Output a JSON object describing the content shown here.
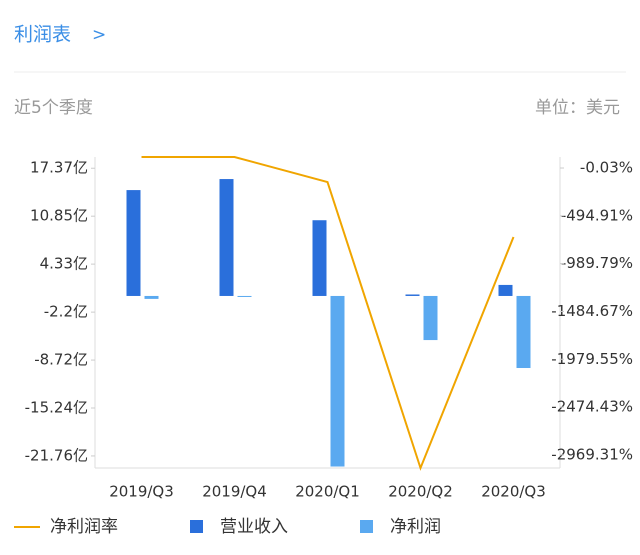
{
  "header": {
    "title": "利润表",
    "chevron": ">",
    "period": "近5个季度",
    "unit": "单位：美元"
  },
  "chart_data": {
    "type": "combo",
    "categories": [
      "2019/Q3",
      "2019/Q4",
      "2020/Q1",
      "2020/Q2",
      "2020/Q3"
    ],
    "series": [
      {
        "name": "净利润率",
        "color": "#f0a500",
        "type": "line",
        "axis": "y2",
        "values": [
          114,
          114,
          -145,
          -3105,
          -714
        ]
      },
      {
        "name": "营业收入",
        "color": "#2a6fdb",
        "type": "bar",
        "values": [
          14.4,
          15.9,
          10.3,
          0.2,
          1.5
        ]
      },
      {
        "name": "净利润",
        "color": "#5aa9f0",
        "type": "bar",
        "values": [
          -0.4,
          -0.1,
          -23.2,
          -6.0,
          -9.8
        ]
      }
    ],
    "ylim": [
      -23.4,
      18.9
    ],
    "yticks": [
      {
        "value": 17.37,
        "label": "17.37亿"
      },
      {
        "value": 10.85,
        "label": "10.85亿"
      },
      {
        "value": 4.33,
        "label": "4.33亿"
      },
      {
        "value": -2.2,
        "label": "-2.2亿"
      },
      {
        "value": -8.72,
        "label": "-8.72亿"
      },
      {
        "value": -15.24,
        "label": "-15.24亿"
      },
      {
        "value": -21.76,
        "label": "-21.76亿"
      }
    ],
    "y2lim": [
      -3105,
      114
    ],
    "y2ticks": [
      {
        "value": -0.03,
        "label": "-0.03%"
      },
      {
        "value": -494.91,
        "label": "-494.91%"
      },
      {
        "value": -989.79,
        "label": "-989.79%"
      },
      {
        "value": -1484.67,
        "label": "-1484.67%"
      },
      {
        "value": -1979.55,
        "label": "-1979.55%"
      },
      {
        "value": -2474.43,
        "label": "-2474.43%"
      },
      {
        "value": -2969.31,
        "label": "-2969.31%"
      }
    ],
    "grid": false,
    "legend": "bottom"
  }
}
